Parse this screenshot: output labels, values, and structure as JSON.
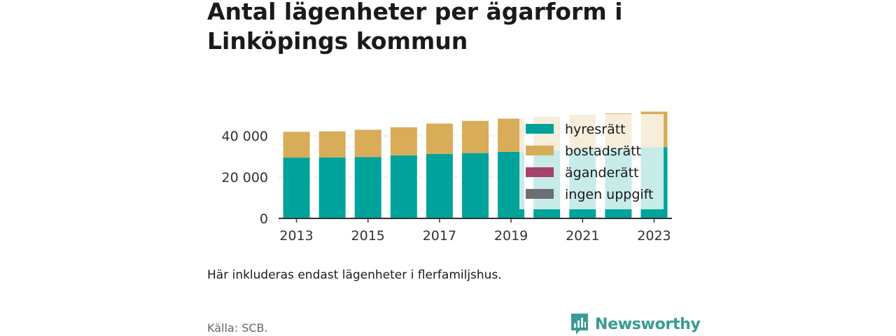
{
  "title": "Antal lägenheter per ägarform i Linköpings kommun",
  "note": "Här inkluderas endast lägenheter i flerfamiljshus.",
  "source": "Källa: SCB.",
  "brand": {
    "name": "Newsworthy",
    "icon": "bar-chart-logo-icon",
    "color": "#3a9b93"
  },
  "colors": {
    "hyresratt": "#00a39a",
    "bostadsratt": "#d9ac5a",
    "aganderatt": "#a7436a",
    "ingen_uppgift": "#6e6e72",
    "axis": "#333333",
    "grid": "#dddddd"
  },
  "chart_data": {
    "type": "bar",
    "stacked": true,
    "categories": [
      "2013",
      "2014",
      "2015",
      "2016",
      "2017",
      "2018",
      "2019",
      "2020",
      "2021",
      "2022",
      "2023"
    ],
    "tick_labels": [
      "2013",
      "2015",
      "2017",
      "2019",
      "2021",
      "2023"
    ],
    "yticks": [
      0,
      20000,
      40000
    ],
    "ytick_labels": [
      "0",
      "20 000",
      "40 000"
    ],
    "ylim": [
      0,
      55000
    ],
    "grid": true,
    "legend_position": "top-right (overlapping plot)",
    "series": [
      {
        "name": "hyresrätt",
        "color": "#00a39a",
        "values": [
          29500,
          29600,
          29800,
          30600,
          31300,
          31700,
          32300,
          33000,
          33600,
          34000,
          34500
        ]
      },
      {
        "name": "bostadsrätt",
        "color": "#d9ac5a",
        "values": [
          12500,
          12600,
          13200,
          13600,
          14700,
          15600,
          16100,
          16300,
          16600,
          16900,
          17300
        ]
      },
      {
        "name": "äganderätt",
        "color": "#a7436a",
        "values": [
          0,
          0,
          0,
          0,
          0,
          0,
          0,
          0,
          0,
          0,
          0
        ]
      },
      {
        "name": "ingen uppgift",
        "color": "#6e6e72",
        "values": [
          0,
          0,
          0,
          0,
          0,
          0,
          0,
          0,
          0,
          0,
          0
        ]
      }
    ]
  }
}
